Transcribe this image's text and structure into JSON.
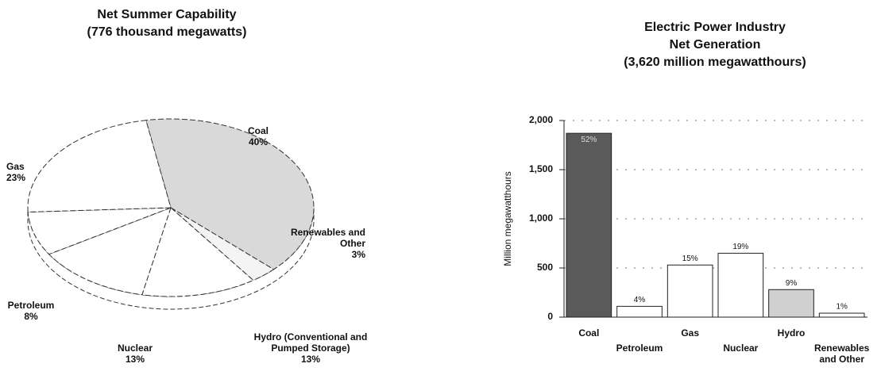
{
  "chart_data": [
    {
      "type": "pie",
      "title": "Net Summer Capability",
      "subtitle": "(776 thousand megawatts)",
      "categories": [
        "Coal",
        "Renewables and Other",
        "Hydro (Conventional and Pumped Storage)",
        "Nuclear",
        "Petroleum",
        "Gas"
      ],
      "values": [
        40,
        3,
        13,
        13,
        8,
        23
      ],
      "value_labels": [
        "40%",
        "3%",
        "13%",
        "13%",
        "8%",
        "23%"
      ],
      "colors": [
        "#d9d9d9",
        "#f4f4f4",
        "#ffffff",
        "#ffffff",
        "#ffffff",
        "#ffffff"
      ]
    },
    {
      "type": "bar",
      "title": [
        "Electric Power Industry",
        "Net Generation"
      ],
      "subtitle": "(3,620 million megawatthours)",
      "ylabel": "Million megawatthours",
      "categories": [
        "Coal",
        "Petroleum",
        "Gas",
        "Nuclear",
        "Hydro",
        "Renewables and Other"
      ],
      "values": [
        1870,
        110,
        530,
        650,
        280,
        40
      ],
      "annotations": [
        "52%",
        "4%",
        "15%",
        "19%",
        "9%",
        "1%"
      ],
      "colors": [
        "#5a5a5a",
        "#ffffff",
        "#ffffff",
        "#ffffff",
        "#d0d0d0",
        "#ffffff"
      ],
      "ylim": [
        0,
        2000
      ],
      "yticks": [
        0,
        500,
        {
          "value": 1000,
          "label": "1,000"
        },
        {
          "value": 1500,
          "label": "1,500"
        },
        {
          "value": 2000,
          "label": "2,000"
        }
      ],
      "grid": true
    }
  ]
}
